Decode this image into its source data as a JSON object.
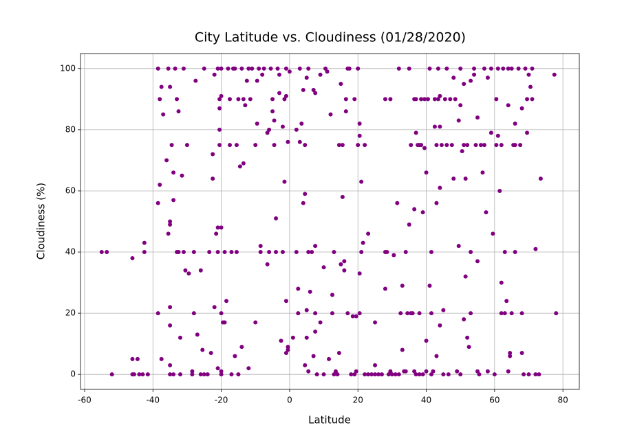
{
  "chart_data": {
    "type": "scatter",
    "title": "City Latitude vs. Cloudiness (01/28/2020)",
    "x_label": "Latitude",
    "y_label": "Cloudiness (%)",
    "color": "#800080",
    "grid": true,
    "xlim": [
      -61.2,
      84.8
    ],
    "ylim": [
      -4.9,
      104.9
    ],
    "xticks": [
      -60,
      -40,
      -20,
      0,
      20,
      40,
      60,
      80
    ],
    "yticks": [
      0,
      20,
      40,
      60,
      80,
      100
    ],
    "x": [
      -55,
      -53.5,
      -52,
      -46,
      -46,
      -46,
      -45.5,
      -44.5,
      -44,
      -43,
      -42.5,
      -42.5,
      -41.5,
      -38.5,
      -38.5,
      -38.5,
      -38,
      -38,
      -37.5,
      -37.5,
      -37,
      -36,
      -35.5,
      -35.5,
      -35,
      -35,
      -35,
      -35,
      -35,
      -35,
      -35,
      -34.5,
      -34,
      -34,
      -34,
      -33.5,
      -33,
      -33,
      -32.5,
      -32.5,
      -32,
      -32,
      -31.5,
      -31,
      -31,
      -30.5,
      -30,
      -29.5,
      -28.5,
      -28.5,
      -28,
      -28,
      -27.5,
      -27,
      -26,
      -26,
      -25.5,
      -25,
      -25,
      -24,
      -23.5,
      -23,
      -22.5,
      -22.5,
      -22,
      -22,
      -21.5,
      -21,
      -21,
      -21,
      -21,
      -20.5,
      -20.5,
      -20.5,
      -20.5,
      -20,
      -20,
      -20,
      -20,
      -20,
      -20,
      -19.5,
      -19,
      -19,
      -18.5,
      -18,
      -17.5,
      -17.5,
      -17,
      -17,
      -16.5,
      -16,
      -16,
      -15.5,
      -15.5,
      -15,
      -15,
      -14.5,
      -14,
      -14,
      -13.5,
      -13.5,
      -13,
      -12.5,
      -12,
      -12,
      -11.5,
      -11,
      -10,
      -10,
      -9.5,
      -9.5,
      -9,
      -8.5,
      -8.5,
      -8,
      -7.5,
      -6.5,
      -6.5,
      -6,
      -6,
      -5.5,
      -5,
      -5,
      -4.5,
      -4.5,
      -4,
      -4,
      -3.5,
      -3,
      -3,
      -2.5,
      -2,
      -2,
      -1.5,
      -1.5,
      -1,
      -1,
      -1,
      -1,
      -0.5,
      -0.5,
      -0.5,
      0,
      1,
      2,
      2,
      2.5,
      2.5,
      3,
      3,
      3.5,
      4,
      4,
      4.5,
      4.5,
      4.5,
      5,
      5,
      5,
      5.5,
      5.5,
      5.5,
      6,
      6.5,
      7,
      7,
      7.5,
      7.5,
      7.5,
      7.5,
      8,
      9,
      9,
      10,
      10,
      10.5,
      11,
      11.5,
      12,
      12.5,
      12.5,
      13,
      13,
      13.5,
      14,
      14.5,
      14.5,
      15,
      15,
      15.5,
      15.5,
      16,
      16,
      16.5,
      16.5,
      17,
      17,
      17.5,
      18,
      18.5,
      19,
      19,
      19.5,
      19.5,
      20,
      20,
      20.5,
      20.5,
      20.5,
      20.5,
      21,
      21,
      21.5,
      22,
      22,
      23,
      23,
      24,
      25,
      25,
      25,
      26,
      27,
      28,
      28,
      28,
      28.5,
      29,
      29.5,
      29.5,
      30,
      30.5,
      31,
      31.5,
      32,
      32,
      32.5,
      33,
      33,
      33.5,
      34,
      34,
      34.5,
      35,
      35,
      35.5,
      35.5,
      36,
      36.5,
      36.5,
      36.5,
      37,
      37,
      37,
      37.5,
      38,
      38,
      38,
      38.5,
      38.5,
      39,
      39,
      39.5,
      39.5,
      40,
      40,
      40,
      40.5,
      41,
      41,
      41.5,
      41.5,
      41.5,
      42,
      42.5,
      42.5,
      43,
      43,
      43,
      43.5,
      43.5,
      44,
      44,
      44,
      44,
      44.5,
      45,
      45,
      45.5,
      46,
      46,
      46.5,
      47,
      47.5,
      48,
      48,
      48.5,
      49,
      49.5,
      49.5,
      50,
      50,
      50,
      50.5,
      51,
      51,
      51,
      51.5,
      51.5,
      52,
      52,
      52.5,
      53,
      53,
      53,
      54,
      54,
      54.5,
      55,
      55,
      55,
      55.5,
      56,
      56.5,
      57,
      57,
      57.5,
      58,
      58,
      59,
      59,
      59.5,
      60,
      60.5,
      60.5,
      61,
      61,
      61.5,
      62,
      62,
      62,
      62.5,
      63,
      63,
      63.5,
      64,
      64,
      64,
      64.5,
      64.5,
      65,
      65,
      65.5,
      66,
      66,
      66,
      67,
      67.5,
      68,
      68,
      68,
      68.5,
      69,
      69.5,
      69.5,
      70,
      70,
      70.5,
      71,
      71,
      72,
      72,
      73,
      73.5,
      77.5,
      78
    ],
    "values": [
      40,
      40,
      0,
      38,
      5,
      0,
      0,
      5,
      0,
      0,
      40,
      43,
      0,
      56,
      20,
      100,
      62,
      90,
      5,
      94,
      85,
      70,
      46,
      100,
      22,
      94,
      50,
      49,
      16,
      3,
      0,
      75,
      66,
      57,
      0,
      100,
      40,
      90,
      86,
      40,
      0,
      12,
      65,
      100,
      40,
      34,
      75,
      33,
      0,
      1,
      40,
      20,
      96,
      13,
      0,
      34,
      8,
      100,
      0,
      0,
      40,
      7,
      72,
      64,
      22,
      98,
      46,
      2,
      48,
      100,
      40,
      90,
      87,
      80,
      75,
      91,
      100,
      20,
      48,
      1,
      0,
      17,
      40,
      17,
      24,
      100,
      90,
      75,
      40,
      0,
      100,
      6,
      100,
      75,
      40,
      0,
      90,
      68,
      9,
      100,
      90,
      69,
      88,
      96,
      100,
      2,
      90,
      100,
      17,
      75,
      96,
      82,
      100,
      42,
      40,
      98,
      100,
      36,
      79,
      80,
      40,
      100,
      86,
      90,
      83,
      75,
      40,
      51,
      100,
      98,
      92,
      11,
      40,
      81,
      90,
      63,
      91,
      7,
      24,
      100,
      9,
      8,
      76,
      99,
      12,
      80,
      40,
      20,
      28,
      100,
      76,
      82,
      93,
      56,
      59,
      75,
      3,
      21,
      97,
      12,
      100,
      1,
      40,
      27,
      40,
      93,
      6,
      92,
      14,
      42,
      20,
      0,
      98,
      17,
      35,
      0,
      100,
      99,
      5,
      85,
      20,
      26,
      40,
      0,
      1,
      0,
      7,
      75,
      95,
      36,
      58,
      75,
      34,
      37,
      90,
      86,
      100,
      20,
      100,
      0,
      19,
      90,
      0,
      1,
      19,
      75,
      100,
      82,
      78,
      20,
      33,
      63,
      40,
      43,
      0,
      75,
      46,
      0,
      0,
      3,
      17,
      0,
      0,
      0,
      28,
      90,
      40,
      40,
      0,
      90,
      1,
      0,
      39,
      0,
      56,
      100,
      0,
      20,
      29,
      8,
      1,
      40,
      1,
      20,
      49,
      100,
      20,
      75,
      20,
      90,
      54,
      1,
      79,
      0,
      90,
      75,
      75,
      20,
      0,
      90,
      75,
      53,
      0,
      74,
      90,
      66,
      11,
      1,
      90,
      29,
      100,
      40,
      20,
      0,
      1,
      90,
      81,
      56,
      6,
      75,
      100,
      90,
      61,
      91,
      81,
      16,
      75,
      21,
      0,
      90,
      100,
      75,
      0,
      90,
      75,
      97,
      64,
      90,
      1,
      42,
      83,
      100,
      88,
      0,
      73,
      18,
      75,
      95,
      64,
      32,
      12,
      75,
      9,
      96,
      20,
      40,
      100,
      98,
      75,
      37,
      84,
      1,
      0,
      75,
      66,
      100,
      75,
      53,
      97,
      1,
      79,
      100,
      46,
      0,
      75,
      90,
      78,
      100,
      60,
      75,
      30,
      20,
      100,
      20,
      40,
      24,
      100,
      88,
      1,
      7,
      6,
      20,
      100,
      75,
      82,
      40,
      75,
      100,
      75,
      20,
      87,
      7,
      0,
      100,
      79,
      90,
      98,
      0,
      94,
      90,
      100,
      41,
      0,
      0,
      64,
      98,
      20
    ]
  }
}
